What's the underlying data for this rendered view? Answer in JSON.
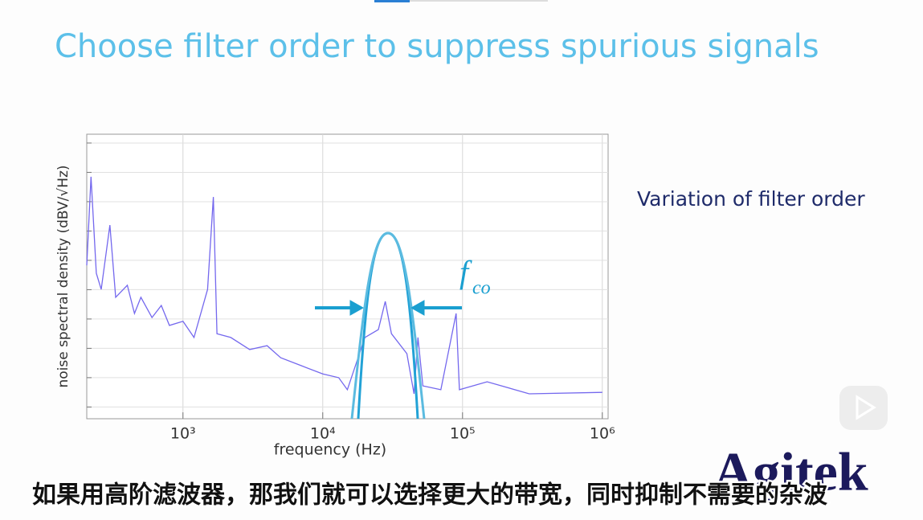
{
  "slide": {
    "title": "Choose filter order to suppress spurious signals",
    "side_text": "Variation of filter order"
  },
  "chart_data": {
    "type": "line",
    "xlabel": "frequency (Hz)",
    "ylabel": "noise spectral density (dBV/√Hz)",
    "annotation": "f",
    "annotation_subscript": "co",
    "xscale": "log",
    "grid": true,
    "xlim": [
      205,
      1100000
    ],
    "ylim": [
      -0.4,
      9.3
    ],
    "xticks": [
      {
        "value": 1000,
        "label": "10³"
      },
      {
        "value": 10000,
        "label": "10⁴"
      },
      {
        "value": 100000,
        "label": "10⁵"
      },
      {
        "value": 1000000,
        "label": "10⁶"
      }
    ],
    "yticks": [
      0,
      1,
      2,
      3,
      4,
      5,
      6,
      7,
      8,
      9
    ],
    "series": [
      {
        "color": "#7468ee",
        "x": [
          205,
          220,
          240,
          260,
          300,
          330,
          400,
          450,
          500,
          600,
          700,
          800,
          1000,
          1200,
          1500,
          1650,
          1750,
          2200,
          3000,
          4000,
          5000,
          7000,
          10000,
          13000,
          15000,
          20000,
          25000,
          28000,
          31000,
          40000,
          45000,
          48000,
          52000,
          70000,
          90000,
          95000,
          150000,
          300000,
          1000000
        ],
        "values": [
          4.83,
          7.85,
          4.56,
          4.01,
          6.2,
          3.74,
          4.15,
          3.19,
          3.74,
          3.05,
          3.46,
          2.78,
          2.92,
          2.37,
          4.01,
          7.16,
          2.5,
          2.37,
          1.96,
          2.09,
          1.68,
          1.41,
          1.13,
          1.0,
          0.59,
          2.37,
          2.64,
          3.6,
          2.5,
          1.82,
          0.45,
          2.37,
          0.72,
          0.59,
          3.19,
          0.59,
          0.86,
          0.45,
          0.5
        ]
      }
    ]
  },
  "caption": "如果用高阶滤波器，那我们就可以选择更大的带宽，同时抑制不需要的杂波",
  "logo": "Agitek"
}
